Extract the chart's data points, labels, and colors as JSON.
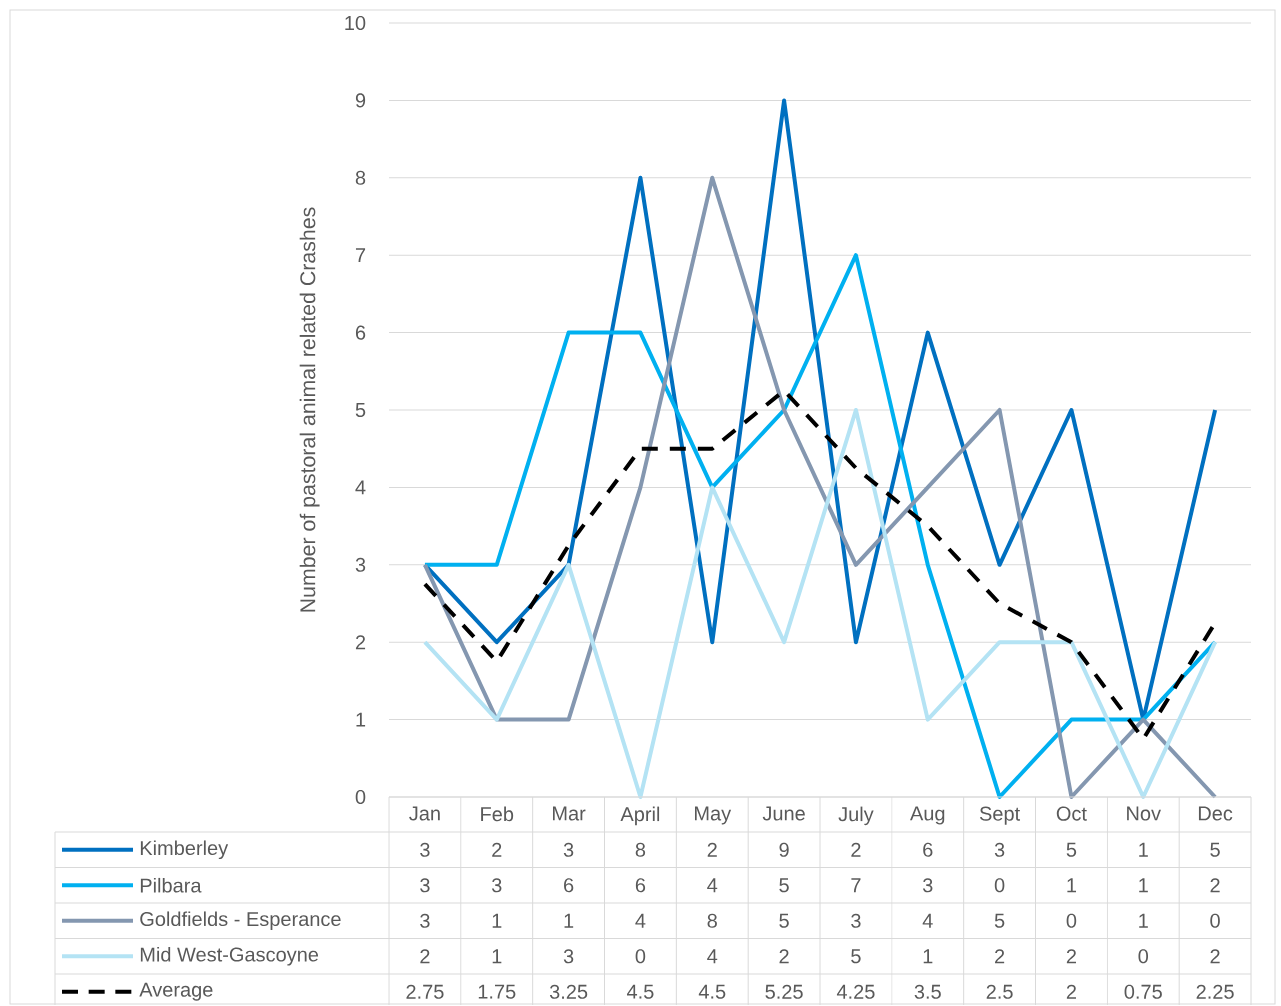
{
  "chart_data": {
    "type": "line",
    "ylabel": "Number of pastoral animal related Crashes",
    "categories": [
      "Jan",
      "Feb",
      "Mar",
      "April",
      "May",
      "June",
      "July",
      "Aug",
      "Sept",
      "Oct",
      "Nov",
      "Dec"
    ],
    "series": [
      {
        "name": "Kimberley",
        "color": "#0070c0",
        "values": [
          3,
          2,
          3,
          8,
          2,
          9,
          2,
          6,
          3,
          5,
          1,
          5
        ]
      },
      {
        "name": "Pilbara",
        "color": "#00b0f0",
        "values": [
          3,
          3,
          6,
          6,
          4,
          5,
          7,
          3,
          0,
          1,
          1,
          2
        ]
      },
      {
        "name": "Goldfields - Esperance",
        "color": "#8497b0",
        "values": [
          3,
          1,
          1,
          4,
          8,
          5,
          3,
          4,
          5,
          0,
          1,
          0
        ]
      },
      {
        "name": "Mid West-Gascoyne",
        "color": "#b4e3f4",
        "values": [
          2,
          1,
          3,
          0,
          4,
          2,
          5,
          1,
          2,
          2,
          0,
          2
        ]
      },
      {
        "name": "Average",
        "color": "#000000",
        "line_style": "dashed",
        "values": [
          2.75,
          1.75,
          3.25,
          4.5,
          4.5,
          5.25,
          4.25,
          3.5,
          2.5,
          2,
          0.75,
          2.25
        ]
      }
    ],
    "ylim": [
      0,
      10
    ],
    "yticks": [
      0,
      1,
      2,
      3,
      4,
      5,
      6,
      7,
      8,
      9,
      10
    ],
    "grid": "y",
    "legend": "bottom",
    "data_labels": true,
    "marker": "none"
  }
}
